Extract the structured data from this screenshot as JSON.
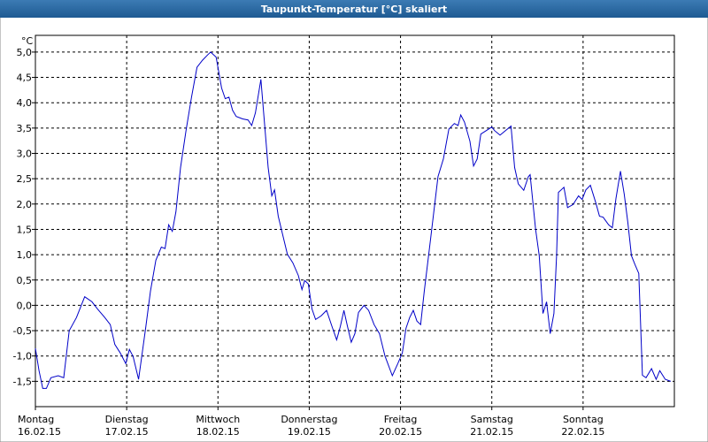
{
  "chart_data": {
    "type": "line",
    "title": "Taupunkt-Temperatur [°C] skaliert",
    "y_unit": "°C",
    "xlim": [
      0,
      7
    ],
    "ylim": [
      -2.0,
      5.33
    ],
    "grid": true,
    "xticks": [
      {
        "value": 0,
        "label": [
          "Montag",
          "16.02.15"
        ]
      },
      {
        "value": 1,
        "label": [
          "Dienstag",
          "17.02.15"
        ]
      },
      {
        "value": 2,
        "label": [
          "Mittwoch",
          "18.02.15"
        ]
      },
      {
        "value": 3,
        "label": [
          "Donnerstag",
          "19.02.15"
        ]
      },
      {
        "value": 4,
        "label": [
          "Freitag",
          "20.02.15"
        ]
      },
      {
        "value": 5,
        "label": [
          "Samstag",
          "21.02.15"
        ]
      },
      {
        "value": 6,
        "label": [
          "Sonntag",
          "22.02.15"
        ]
      }
    ],
    "yticks": [
      {
        "value": -1.5,
        "label": "-1,5"
      },
      {
        "value": -1.0,
        "label": "-1,0"
      },
      {
        "value": -0.5,
        "label": "-0,5"
      },
      {
        "value": 0,
        "label": "0,0"
      },
      {
        "value": 0.5,
        "label": "0,5"
      },
      {
        "value": 1.0,
        "label": "1,0"
      },
      {
        "value": 1.5,
        "label": "1,5"
      },
      {
        "value": 2.0,
        "label": "2,0"
      },
      {
        "value": 2.5,
        "label": "2,5"
      },
      {
        "value": 3.0,
        "label": "3,0"
      },
      {
        "value": 3.5,
        "label": "3,5"
      },
      {
        "value": 4.0,
        "label": "4,0"
      },
      {
        "value": 4.5,
        "label": "4,5"
      },
      {
        "value": 5.0,
        "label": "5,0"
      }
    ],
    "series": [
      {
        "color": "#0000c8",
        "x": [
          0,
          0.04,
          0.08,
          0.12,
          0.17,
          0.25,
          0.31,
          0.37,
          0.45,
          0.54,
          0.62,
          0.68,
          0.76,
          0.82,
          0.87,
          0.93,
          0.99,
          1.03,
          1.07,
          1.13,
          1.21,
          1.26,
          1.32,
          1.38,
          1.42,
          1.46,
          1.5,
          1.54,
          1.59,
          1.65,
          1.71,
          1.77,
          1.83,
          1.89,
          1.92,
          1.98,
          2.04,
          2.08,
          2.12,
          2.16,
          2.2,
          2.27,
          2.33,
          2.37,
          2.41,
          2.47,
          2.51,
          2.55,
          2.59,
          2.62,
          2.66,
          2.7,
          2.76,
          2.82,
          2.88,
          2.92,
          2.95,
          2.99,
          3.03,
          3.07,
          3.13,
          3.19,
          3.25,
          3.3,
          3.34,
          3.38,
          3.42,
          3.46,
          3.5,
          3.54,
          3.6,
          3.65,
          3.71,
          3.77,
          3.83,
          3.91,
          3.97,
          4.02,
          4.06,
          4.1,
          4.14,
          4.18,
          4.22,
          4.26,
          4.33,
          4.41,
          4.47,
          4.53,
          4.59,
          4.63,
          4.66,
          4.7,
          4.76,
          4.8,
          4.84,
          4.88,
          4.94,
          5.0,
          5.03,
          5.09,
          5.15,
          5.21,
          5.25,
          5.29,
          5.35,
          5.4,
          5.42,
          5.48,
          5.52,
          5.56,
          5.6,
          5.64,
          5.68,
          5.71,
          5.73,
          5.79,
          5.83,
          5.89,
          5.95,
          5.99,
          6.03,
          6.08,
          6.14,
          6.18,
          6.22,
          6.28,
          6.32,
          6.36,
          6.41,
          6.45,
          6.49,
          6.53,
          6.57,
          6.61,
          6.65,
          6.69,
          6.75,
          6.8,
          6.84,
          6.9,
          6.96
        ],
        "values": [
          -0.85,
          -1.29,
          -1.64,
          -1.64,
          -1.43,
          -1.39,
          -1.43,
          -0.5,
          -0.24,
          0.17,
          0.07,
          -0.07,
          -0.24,
          -0.38,
          -0.77,
          -0.94,
          -1.15,
          -0.87,
          -1.01,
          -1.46,
          -0.42,
          0.28,
          0.89,
          1.15,
          1.12,
          1.59,
          1.46,
          1.85,
          2.72,
          3.45,
          4.11,
          4.7,
          4.84,
          4.95,
          5.0,
          4.9,
          4.29,
          4.08,
          4.11,
          3.85,
          3.73,
          3.68,
          3.66,
          3.55,
          3.8,
          4.46,
          3.59,
          2.72,
          2.16,
          2.28,
          1.76,
          1.46,
          1.01,
          0.84,
          0.59,
          0.31,
          0.49,
          0.42,
          -0.07,
          -0.28,
          -0.21,
          -0.1,
          -0.42,
          -0.68,
          -0.42,
          -0.1,
          -0.42,
          -0.73,
          -0.56,
          -0.14,
          0.0,
          -0.1,
          -0.38,
          -0.56,
          -1.0,
          -1.39,
          -1.15,
          -0.94,
          -0.45,
          -0.24,
          -0.1,
          -0.31,
          -0.38,
          0.28,
          1.32,
          2.54,
          2.89,
          3.48,
          3.59,
          3.55,
          3.76,
          3.62,
          3.24,
          2.75,
          2.89,
          3.38,
          3.45,
          3.52,
          3.45,
          3.36,
          3.45,
          3.54,
          2.72,
          2.4,
          2.27,
          2.54,
          2.58,
          1.5,
          0.98,
          -0.16,
          0.07,
          -0.56,
          -0.16,
          0.98,
          2.23,
          2.33,
          1.93,
          1.99,
          2.16,
          2.09,
          2.28,
          2.37,
          2.02,
          1.76,
          1.74,
          1.59,
          1.53,
          2.11,
          2.65,
          2.2,
          1.64,
          0.98,
          0.8,
          0.63,
          -1.38,
          -1.43,
          -1.25,
          -1.46,
          -1.29,
          -1.46,
          -1.5
        ]
      }
    ]
  }
}
